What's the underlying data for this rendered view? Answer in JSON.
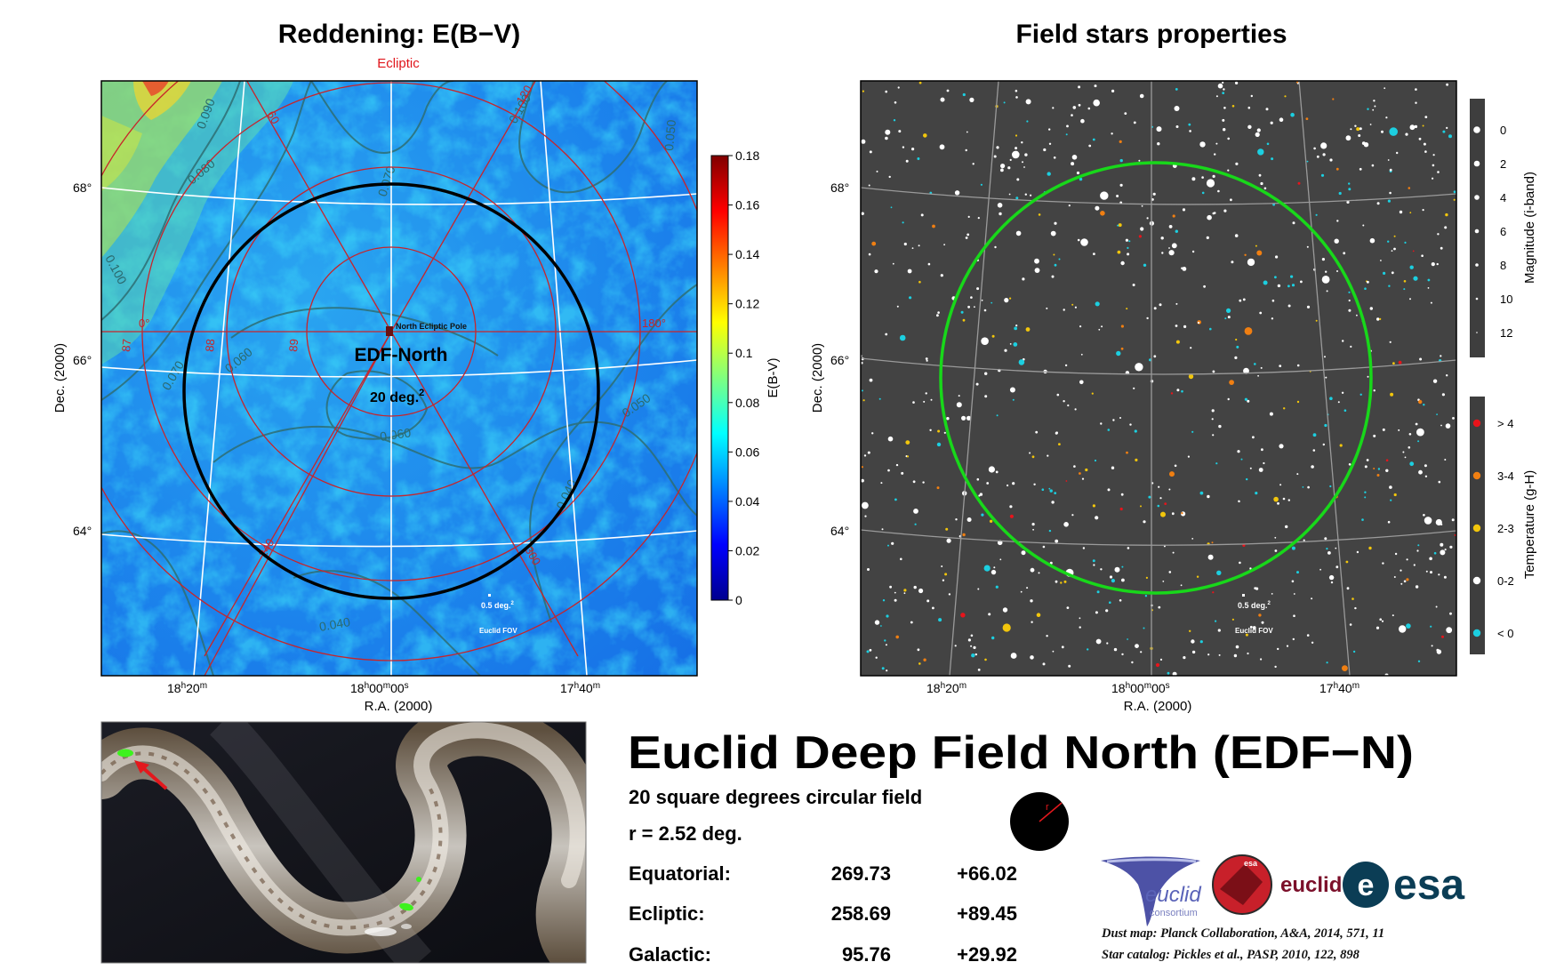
{
  "left_panel": {
    "title": "Reddening: E(B−V)",
    "top_label": "Ecliptic",
    "ylabel": "Dec. (2000)",
    "xlabel": "R.A. (2000)",
    "dec_ticks": [
      {
        "value": 68,
        "label": "68°"
      },
      {
        "value": 66,
        "label": "66°"
      },
      {
        "value": 64,
        "label": "64°"
      }
    ],
    "ra_ticks": [
      {
        "value": "18h20m",
        "label_main": "18",
        "sup1": "h",
        "mid": "20",
        "sup2": "m",
        "tail": "",
        "sup3": ""
      },
      {
        "value": "18h00m00s",
        "label_main": "18",
        "sup1": "h",
        "mid": "00",
        "sup2": "m",
        "tail": "00",
        "sup3": "s"
      },
      {
        "value": "17h40m",
        "label_main": "17",
        "sup1": "h",
        "mid": "40",
        "sup2": "m",
        "tail": "",
        "sup3": ""
      }
    ],
    "colorbar_label": "E(B-V)",
    "colorbar_ticks": [
      "0.18",
      "0.16",
      "0.14",
      "0.12",
      "0.1",
      "0.08",
      "0.06",
      "0.04",
      "0.02",
      "0"
    ],
    "field_label": "EDF-North",
    "area_label": "20 deg.",
    "area_sup": "2",
    "pole_label": "North Ecliptic Pole",
    "fov_area": "0.5 deg.",
    "fov_sup": "2",
    "fov_label": "Euclid FOV",
    "ecliptic_labels": [
      "0°",
      "180°",
      "87",
      "88",
      "89",
      "60",
      "120",
      "240",
      "300"
    ],
    "contour_labels": [
      "0.100",
      "0.090",
      "0.080",
      "0.070",
      "0.070",
      "0.060",
      "0.060",
      "0.050",
      "0.050",
      "0.040",
      "0.040",
      "0.100"
    ]
  },
  "right_panel": {
    "title": "Field stars properties",
    "ylabel": "Dec. (2000)",
    "xlabel": "R.A. (2000)",
    "fov_area": "0.5 deg.",
    "fov_sup": "2",
    "fov_label": "Euclid FOV",
    "mag_legend_title": "Magnitude (i-band)",
    "mag_legend": [
      "0",
      "2",
      "4",
      "6",
      "8",
      "10",
      "12"
    ],
    "temp_legend_title": "Temperature (g-H)",
    "temp_legend": [
      {
        "label": "> 4",
        "color": "#e8141b"
      },
      {
        "label": "3-4",
        "color": "#f07f12"
      },
      {
        "label": "2-3",
        "color": "#f2c60c"
      },
      {
        "label": "0-2",
        "color": "#ffffff"
      },
      {
        "label": "< 0",
        "color": "#1ccfe0"
      }
    ]
  },
  "info": {
    "title": "Euclid Deep Field North (EDF−N)",
    "subtitle": "20 square degrees circular field",
    "radius": "r = 2.52 deg.",
    "radius_icon_label": "r",
    "coords": [
      {
        "name": "Equatorial:",
        "lon": "269.73",
        "lat": "+66.02"
      },
      {
        "name": "Ecliptic:",
        "lon": "258.69",
        "lat": "+89.45"
      },
      {
        "name": "Galactic:",
        "lon": "95.76",
        "lat": "+29.92"
      }
    ],
    "logos": {
      "euclid_consortium": "euclid",
      "consortium_word": "consortium",
      "mission_word": "euclid",
      "esa_badge_word": "esa",
      "esa_word": "esa"
    },
    "credits": [
      "Dust map: Planck Collaboration, A&A, 2014, 571, 11",
      "Star catalog: Pickles et al., PASP, 2010, 122, 898"
    ]
  },
  "chart_data": [
    {
      "type": "heatmap",
      "title": "Reddening: E(B−V)",
      "xlabel": "R.A. (2000)",
      "ylabel": "Dec. (2000)",
      "colorbar": {
        "label": "E(B-V)",
        "range": [
          0,
          0.18
        ],
        "colormap": "jet"
      },
      "x_ticks": [
        "18h20m",
        "18h00m00s",
        "17h40m"
      ],
      "y_ticks": [
        68,
        66,
        64
      ],
      "contour_levels": [
        0.04,
        0.05,
        0.06,
        0.07,
        0.08,
        0.09,
        0.1
      ],
      "field_center": {
        "ra_deg": 269.73,
        "dec_deg": 66.02
      },
      "field_radius_deg": 2.52,
      "field_area_deg2": 20,
      "overlays": [
        "equatorial grid (white)",
        "ecliptic grid (red)",
        "Euclid FOV 0.5 deg2"
      ]
    },
    {
      "type": "scatter",
      "title": "Field stars properties",
      "xlabel": "R.A. (2000)",
      "ylabel": "Dec. (2000)",
      "x_ticks": [
        "18h20m",
        "18h00m00s",
        "17h40m"
      ],
      "y_ticks": [
        68,
        66,
        64
      ],
      "size_legend": {
        "title": "Magnitude (i-band)",
        "values": [
          0,
          2,
          4,
          6,
          8,
          10,
          12
        ]
      },
      "color_legend": {
        "title": "Temperature (g-H)",
        "bins": [
          "> 4",
          "3-4",
          "2-3",
          "0-2",
          "< 0"
        ]
      },
      "field_circle_color": "#18d81a",
      "background": "#434343"
    }
  ]
}
